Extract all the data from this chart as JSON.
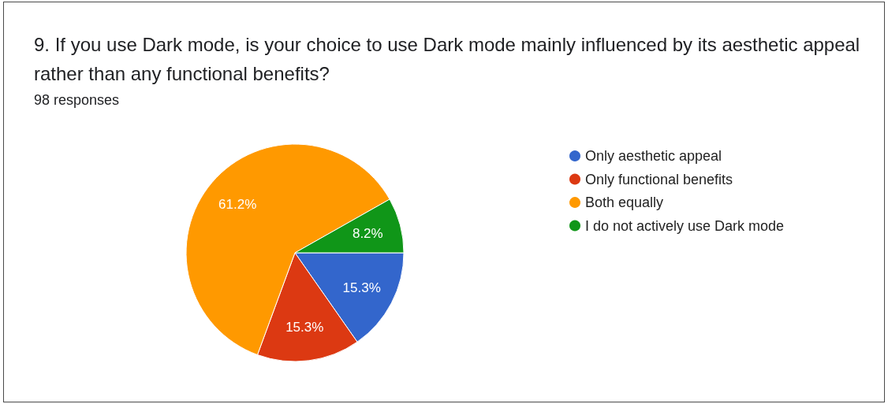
{
  "chart_data": {
    "type": "pie",
    "title": "9. If you use Dark mode, is your choice to use Dark mode mainly influenced by its aesthetic appeal rather than any functional benefits?",
    "subtitle": "98 responses",
    "categories": [
      "Only aesthetic appeal",
      "Only functional benefits",
      "Both equally",
      "I do not actively use Dark mode"
    ],
    "values": [
      15.3,
      15.3,
      61.2,
      8.2
    ],
    "colors": [
      "#3366cc",
      "#dc3912",
      "#ff9900",
      "#109618"
    ],
    "value_labels": [
      "15.3%",
      "15.3%",
      "61.2%",
      "8.2%"
    ],
    "legend": "right"
  }
}
